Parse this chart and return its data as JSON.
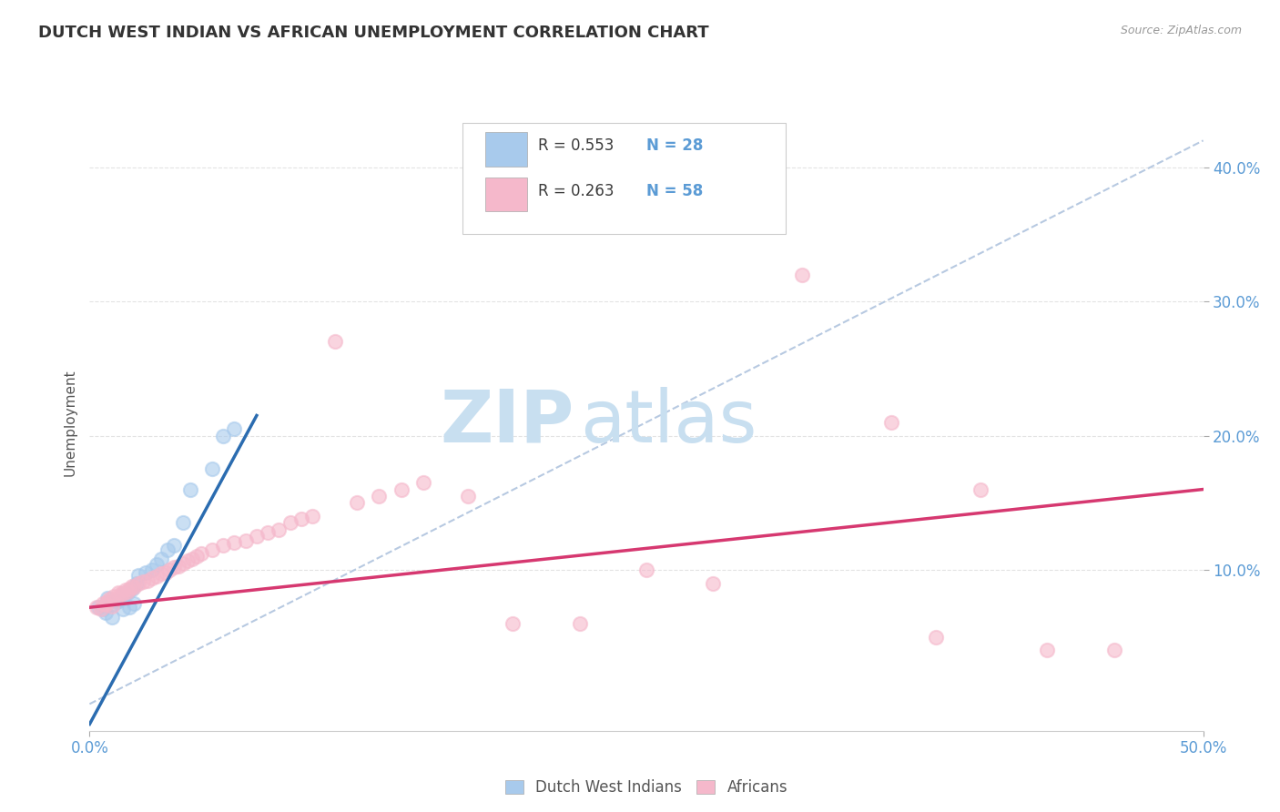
{
  "title": "DUTCH WEST INDIAN VS AFRICAN UNEMPLOYMENT CORRELATION CHART",
  "source": "Source: ZipAtlas.com",
  "ylabel": "Unemployment",
  "xlim": [
    0.0,
    0.5
  ],
  "ylim": [
    -0.02,
    0.44
  ],
  "xticks": [
    0.0,
    0.5
  ],
  "xtick_labels": [
    "0.0%",
    "50.0%"
  ],
  "yticks": [
    0.1,
    0.2,
    0.3,
    0.4
  ],
  "ytick_labels": [
    "10.0%",
    "20.0%",
    "30.0%",
    "40.0%"
  ],
  "legend_entries": [
    {
      "label_r": "R = 0.553",
      "label_n": "N = 28",
      "color": "#a8caec"
    },
    {
      "label_r": "R = 0.263",
      "label_n": "N = 58",
      "color": "#f5b8cb"
    }
  ],
  "legend_labels": [
    "Dutch West Indians",
    "Africans"
  ],
  "blue_scatter_x": [
    0.004,
    0.006,
    0.007,
    0.008,
    0.01,
    0.01,
    0.012,
    0.013,
    0.014,
    0.015,
    0.016,
    0.017,
    0.018,
    0.019,
    0.02,
    0.021,
    0.022,
    0.025,
    0.028,
    0.03,
    0.032,
    0.035,
    0.038,
    0.042,
    0.045,
    0.055,
    0.06,
    0.065
  ],
  "blue_scatter_y": [
    0.072,
    0.071,
    0.068,
    0.079,
    0.065,
    0.074,
    0.076,
    0.077,
    0.08,
    0.071,
    0.083,
    0.083,
    0.072,
    0.086,
    0.075,
    0.09,
    0.096,
    0.098,
    0.1,
    0.104,
    0.108,
    0.115,
    0.118,
    0.135,
    0.16,
    0.175,
    0.2,
    0.205
  ],
  "pink_scatter_x": [
    0.003,
    0.005,
    0.006,
    0.007,
    0.008,
    0.009,
    0.01,
    0.011,
    0.012,
    0.013,
    0.014,
    0.015,
    0.016,
    0.017,
    0.018,
    0.019,
    0.02,
    0.022,
    0.024,
    0.026,
    0.028,
    0.03,
    0.032,
    0.034,
    0.036,
    0.038,
    0.04,
    0.042,
    0.044,
    0.046,
    0.048,
    0.05,
    0.055,
    0.06,
    0.065,
    0.07,
    0.075,
    0.08,
    0.085,
    0.09,
    0.095,
    0.1,
    0.11,
    0.12,
    0.13,
    0.14,
    0.15,
    0.17,
    0.19,
    0.22,
    0.25,
    0.28,
    0.32,
    0.36,
    0.38,
    0.4,
    0.43,
    0.46
  ],
  "pink_scatter_y": [
    0.072,
    0.071,
    0.075,
    0.074,
    0.076,
    0.078,
    0.073,
    0.08,
    0.079,
    0.083,
    0.082,
    0.082,
    0.085,
    0.084,
    0.086,
    0.088,
    0.087,
    0.09,
    0.091,
    0.092,
    0.094,
    0.095,
    0.097,
    0.098,
    0.1,
    0.102,
    0.103,
    0.105,
    0.107,
    0.108,
    0.11,
    0.112,
    0.115,
    0.118,
    0.12,
    0.122,
    0.125,
    0.128,
    0.13,
    0.135,
    0.138,
    0.14,
    0.27,
    0.15,
    0.155,
    0.16,
    0.165,
    0.155,
    0.06,
    0.06,
    0.1,
    0.09,
    0.32,
    0.21,
    0.05,
    0.16,
    0.04,
    0.04
  ],
  "blue_line_x": [
    0.0,
    0.075
  ],
  "blue_line_y": [
    -0.015,
    0.215
  ],
  "pink_line_x": [
    0.0,
    0.5
  ],
  "pink_line_y": [
    0.072,
    0.16
  ],
  "dash_line_x": [
    0.0,
    0.5
  ],
  "dash_line_y": [
    0.0,
    0.42
  ],
  "blue_scatter_color": "#a8caec",
  "pink_scatter_color": "#f5b8cb",
  "blue_line_color": "#2b6cb0",
  "pink_line_color": "#d63870",
  "dash_color": "#b0c4de",
  "grid_color": "#e0e0e0",
  "title_color": "#333333",
  "axis_label_color": "#555555",
  "tick_color": "#5b9bd5",
  "source_color": "#999999",
  "watermark_color": "#c8dff0",
  "background_color": "#ffffff"
}
